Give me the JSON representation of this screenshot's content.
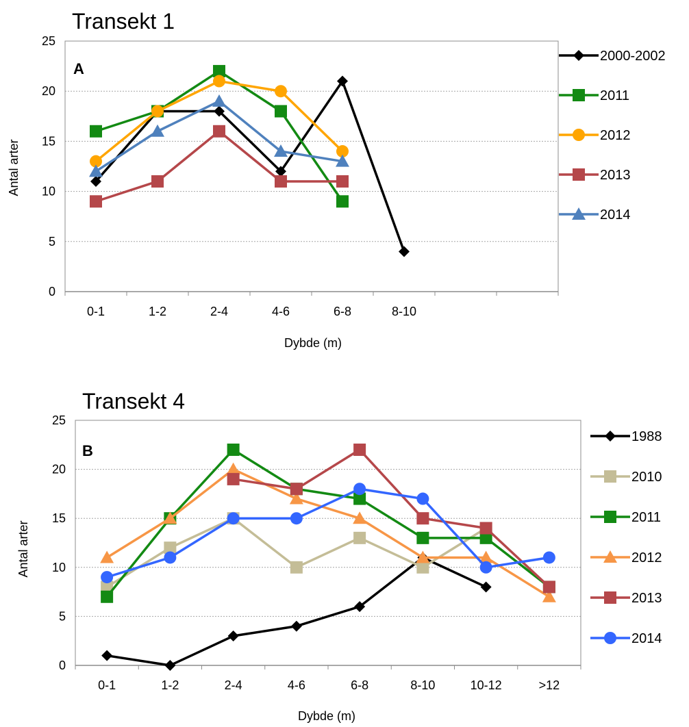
{
  "chart_data": [
    {
      "type": "line",
      "title": "Transekt 1",
      "panel_label": "A",
      "xlabel": "Dybde (m)",
      "ylabel": "Antal arter",
      "categories": [
        "0-1",
        "1-2",
        "2-4",
        "4-6",
        "6-8",
        "8-10",
        "",
        ""
      ],
      "ylim": [
        0,
        25
      ],
      "yticks": [
        0,
        5,
        10,
        15,
        20,
        25
      ],
      "grid": true,
      "legend": "right",
      "series": [
        {
          "name": "2000-2002",
          "color": "#000000",
          "marker": "diamond",
          "values": [
            11,
            18,
            18,
            12,
            21,
            4,
            null,
            null
          ]
        },
        {
          "name": "2011",
          "color": "#138a13",
          "marker": "square",
          "values": [
            16,
            18,
            22,
            18,
            9,
            null,
            null,
            null
          ]
        },
        {
          "name": "2012",
          "color": "#ffa500",
          "marker": "circle",
          "values": [
            13,
            18,
            21,
            20,
            14,
            null,
            null,
            null
          ]
        },
        {
          "name": "2013",
          "color": "#b5474a",
          "marker": "square",
          "values": [
            9,
            11,
            16,
            11,
            11,
            null,
            null,
            null
          ]
        },
        {
          "name": "2014",
          "color": "#4f81bd",
          "marker": "triangle",
          "values": [
            12,
            16,
            19,
            14,
            13,
            null,
            null,
            null
          ]
        }
      ]
    },
    {
      "type": "line",
      "title": "Transekt 4",
      "panel_label": "B",
      "xlabel": "Dybde (m)",
      "ylabel": "Antal arter",
      "categories": [
        "0-1",
        "1-2",
        "2-4",
        "4-6",
        "6-8",
        "8-10",
        "10-12",
        ">12"
      ],
      "ylim": [
        0,
        25
      ],
      "yticks": [
        0,
        5,
        10,
        15,
        20,
        25
      ],
      "grid": true,
      "legend": "right",
      "series": [
        {
          "name": "1988",
          "color": "#000000",
          "marker": "diamond",
          "values": [
            1,
            0,
            3,
            4,
            6,
            11,
            8,
            null
          ]
        },
        {
          "name": "2010",
          "color": "#c4bd97",
          "marker": "square",
          "values": [
            8,
            12,
            15,
            10,
            13,
            10,
            14,
            null
          ]
        },
        {
          "name": "2011",
          "color": "#138a13",
          "marker": "square",
          "values": [
            7,
            15,
            22,
            18,
            17,
            13,
            13,
            8
          ]
        },
        {
          "name": "2012",
          "color": "#f79646",
          "marker": "triangle",
          "values": [
            11,
            15,
            20,
            17,
            15,
            11,
            11,
            7
          ]
        },
        {
          "name": "2013",
          "color": "#b5474a",
          "marker": "square",
          "values": [
            null,
            null,
            19,
            18,
            22,
            15,
            14,
            8
          ]
        },
        {
          "name": "2014",
          "color": "#3366ff",
          "marker": "circle",
          "values": [
            9,
            11,
            15,
            15,
            18,
            17,
            10,
            11
          ]
        }
      ]
    }
  ]
}
